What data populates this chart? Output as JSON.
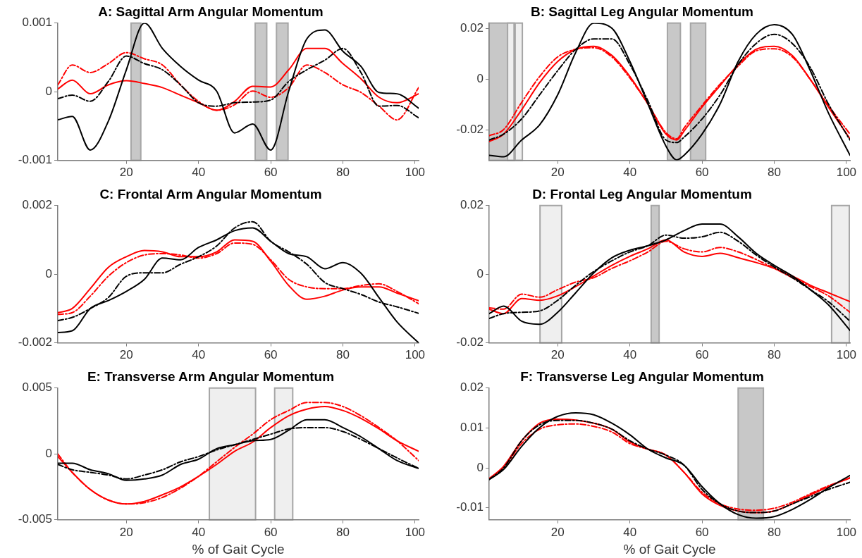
{
  "chart_data": [
    {
      "type": "line",
      "title": "A: Sagittal Arm Angular Momentum",
      "x": [
        1,
        5,
        10,
        15,
        20,
        25,
        30,
        35,
        40,
        45,
        50,
        55,
        60,
        65,
        70,
        75,
        80,
        85,
        90,
        95,
        101
      ],
      "xlim": [
        1,
        101
      ],
      "xticks": [
        20,
        40,
        60,
        80,
        100
      ],
      "ylim": [
        -0.001,
        0.001
      ],
      "yticks": [
        -0.001,
        0,
        0.001
      ],
      "bands": [
        {
          "axis": "x",
          "from": 21.3,
          "to": 24,
          "color": "#c8c8c8"
        },
        {
          "axis": "x",
          "from": 55.7,
          "to": 58.9,
          "color": "#c8c8c8"
        },
        {
          "axis": "x",
          "from": 61.6,
          "to": 64.8,
          "color": "#c8c8c8"
        }
      ],
      "series": [
        {
          "color": "#000000",
          "line_style": "solid",
          "values": [
            -0.00041,
            -0.00036,
            -0.00085,
            -0.00043,
            0.00032,
            0.001,
            0.00063,
            0.00037,
            0.00017,
            1e-05,
            -0.0006,
            -0.00047,
            -0.00085,
            1e-05,
            0.00077,
            0.0009,
            0.00059,
            0.00037,
            -1e-05,
            -3e-05,
            -0.00024
          ]
        },
        {
          "color": "#000000",
          "line_style": "dashed",
          "values": [
            -0.0001,
            -5e-05,
            -0.00014,
            0.00015,
            0.00052,
            0.00041,
            0.00032,
            0.0001,
            -0.00016,
            -0.00021,
            -0.00016,
            -0.00015,
            -0.00012,
            0.00015,
            0.00032,
            0.00046,
            0.00063,
            0.00028,
            -0.00021,
            -0.0002,
            -0.00038
          ]
        },
        {
          "color": "#ff0000",
          "line_style": "solid",
          "values": [
            4e-05,
            0.00017,
            -3e-05,
            0.0001,
            0.00016,
            0.00012,
            6e-05,
            -5e-05,
            -0.00016,
            -0.00027,
            -0.00014,
            8e-05,
            7e-05,
            0.00032,
            0.00063,
            0.00063,
            0.00041,
            0.00019,
            -8e-05,
            -0.00016,
            -3e-05
          ]
        },
        {
          "color": "#ff0000",
          "line_style": "dashed",
          "values": [
            0.0001,
            0.00039,
            0.00028,
            0.00041,
            0.00057,
            0.00048,
            0.00039,
            0.0001,
            -0.00014,
            -0.00027,
            -0.00019,
            1e-05,
            -8e-05,
            6e-05,
            0.00039,
            0.00028,
            0.0001,
            -1e-05,
            -0.00021,
            -0.00041,
            6e-05
          ]
        }
      ]
    },
    {
      "type": "line",
      "title": "B: Sagittal Leg Angular Momentum",
      "x": [
        1,
        5,
        10,
        15,
        20,
        25,
        30,
        35,
        40,
        45,
        50,
        53,
        55,
        60,
        65,
        70,
        75,
        80,
        85,
        90,
        95,
        101
      ],
      "xlim": [
        1,
        101
      ],
      "xticks": [
        20,
        40,
        60,
        80,
        100
      ],
      "ylim": [
        -0.032,
        0.022
      ],
      "yticks": [
        -0.02,
        0,
        0.02
      ],
      "bands": [
        {
          "axis": "x",
          "from": 1,
          "to": 7.9,
          "color": "#c8c8c8"
        },
        {
          "axis": "x",
          "from": 6.1,
          "to": 7.9,
          "color": "#efefef"
        },
        {
          "axis": "x",
          "from": 8.2,
          "to": 10.2,
          "color": "#efefef"
        },
        {
          "axis": "x",
          "from": 50.4,
          "to": 54,
          "color": "#c8c8c8"
        },
        {
          "axis": "x",
          "from": 56.8,
          "to": 61,
          "color": "#c8c8c8"
        }
      ],
      "series": [
        {
          "color": "#000000",
          "line_style": "solid",
          "values": [
            -0.03,
            -0.0306,
            -0.024,
            -0.018,
            -0.0062,
            0.0105,
            0.022,
            0.02,
            0.0069,
            -0.0098,
            -0.0264,
            -0.0318,
            -0.03,
            -0.0217,
            -0.0098,
            0.0069,
            0.0176,
            0.0214,
            0.0176,
            0.0033,
            -0.0133,
            -0.03
          ]
        },
        {
          "color": "#000000",
          "line_style": "dashed",
          "values": [
            -0.024,
            -0.0217,
            -0.0157,
            -0.0062,
            0.0033,
            0.0117,
            0.0158,
            0.0158,
            0.0057,
            -0.0086,
            -0.024,
            -0.025,
            -0.0229,
            -0.0157,
            -0.0062,
            0.0057,
            0.014,
            0.0176,
            0.014,
            0.0045,
            -0.0098,
            -0.024
          ]
        },
        {
          "color": "#ff0000",
          "line_style": "solid",
          "values": [
            -0.0246,
            -0.0217,
            -0.0121,
            -0.0014,
            0.0069,
            0.0117,
            0.0129,
            0.0093,
            0.001,
            -0.0098,
            -0.0217,
            -0.024,
            -0.0205,
            -0.011,
            -0.0026,
            0.0057,
            0.0117,
            0.0129,
            0.0093,
            -0.0002,
            -0.011,
            -0.0235
          ]
        },
        {
          "color": "#ff0000",
          "line_style": "dashed",
          "values": [
            -0.0223,
            -0.0199,
            -0.0092,
            0.001,
            0.0087,
            0.0117,
            0.0123,
            0.0087,
            0.0004,
            -0.0098,
            -0.0211,
            -0.0235,
            -0.0193,
            -0.0104,
            -0.002,
            0.0051,
            0.0111,
            0.0119,
            0.0087,
            -0.0002,
            -0.0104,
            -0.0217
          ]
        }
      ]
    },
    {
      "type": "line",
      "title": "C: Frontal Arm Angular Momentum",
      "x": [
        1,
        5,
        10,
        15,
        20,
        25,
        30,
        35,
        40,
        45,
        50,
        55,
        60,
        65,
        70,
        75,
        80,
        85,
        90,
        95,
        101
      ],
      "xlim": [
        1,
        101
      ],
      "xticks": [
        20,
        40,
        60,
        80,
        100
      ],
      "ylim": [
        -0.002,
        0.002
      ],
      "yticks": [
        -0.002,
        0,
        0.002
      ],
      "series": [
        {
          "color": "#000000",
          "line_style": "solid",
          "values": [
            -0.0017,
            -0.00165,
            -0.001,
            -0.00077,
            -0.0005,
            -0.00015,
            0.00047,
            0.00042,
            0.00078,
            0.001,
            0.00127,
            0.00135,
            0.00096,
            0.0006,
            0.00051,
            0.00016,
            0.00034,
            3e-05,
            -0.00068,
            -0.00139,
            -0.002
          ]
        },
        {
          "color": "#000000",
          "line_style": "dashed",
          "values": [
            -0.00135,
            -0.00126,
            -0.001,
            -0.00068,
            -6e-05,
            4e-05,
            4e-05,
            0.00029,
            0.00051,
            0.00082,
            0.00135,
            0.00153,
            0.00096,
            0.00065,
            0.00029,
            -0.00024,
            -0.00042,
            -0.00059,
            -0.00081,
            -0.00095,
            -0.00114
          ]
        },
        {
          "color": "#ff0000",
          "line_style": "solid",
          "values": [
            -0.00112,
            -0.001,
            -0.00042,
            0.0002,
            0.00051,
            0.00069,
            0.00065,
            0.00051,
            0.00051,
            0.00065,
            0.001,
            0.00096,
            0.00038,
            -0.00033,
            -0.00073,
            -0.00064,
            -0.00046,
            -0.00037,
            -0.00037,
            -0.00055,
            -0.00077
          ]
        },
        {
          "color": "#ff0000",
          "line_style": "dashed",
          "values": [
            -0.00117,
            -0.00112,
            -0.00064,
            -6e-05,
            0.00034,
            0.00056,
            0.0006,
            0.00056,
            0.00047,
            0.0006,
            0.00091,
            0.00087,
            0.00042,
            -0.00015,
            -0.00037,
            -0.00042,
            -0.00042,
            -0.00033,
            -0.00028,
            -0.0005,
            -0.00086
          ]
        }
      ]
    },
    {
      "type": "line",
      "title": "D: Frontal Leg Angular Momentum",
      "x": [
        1,
        5,
        10,
        15,
        20,
        25,
        30,
        35,
        40,
        45,
        50,
        55,
        60,
        65,
        70,
        75,
        80,
        85,
        90,
        95,
        101
      ],
      "xlim": [
        1,
        101
      ],
      "xticks": [
        20,
        40,
        60,
        80,
        100
      ],
      "ylim": [
        -0.02,
        0.02
      ],
      "yticks": [
        -0.02,
        0,
        0.02
      ],
      "bands": [
        {
          "axis": "x",
          "from": 15.1,
          "to": 21.1,
          "color": "#efefef"
        },
        {
          "axis": "x",
          "from": 45.9,
          "to": 48.1,
          "color": "#c8c8c8"
        },
        {
          "axis": "x",
          "from": 95.9,
          "to": 100.8,
          "color": "#efefef"
        }
      ],
      "series": [
        {
          "color": "#000000",
          "line_style": "solid",
          "values": [
            -0.0115,
            -0.0093,
            -0.0137,
            -0.0146,
            -0.0111,
            -0.0054,
            0.0004,
            0.0048,
            0.007,
            0.0083,
            0.01,
            0.0127,
            0.0146,
            0.0146,
            0.0109,
            0.0061,
            0.0026,
            -0.0005,
            -0.0045,
            -0.0089,
            -0.0164
          ]
        },
        {
          "color": "#000000",
          "line_style": "dashed",
          "values": [
            -0.0129,
            -0.0115,
            -0.0111,
            -0.0107,
            -0.0076,
            -0.0032,
            0.0008,
            0.0039,
            0.0065,
            0.0083,
            0.0114,
            0.0105,
            0.0109,
            0.0122,
            0.0096,
            0.0056,
            0.0021,
            -0.001,
            -0.0045,
            -0.008,
            -0.0137
          ]
        },
        {
          "color": "#ff0000",
          "line_style": "solid",
          "values": [
            -0.0102,
            -0.0115,
            -0.0071,
            -0.0076,
            -0.0063,
            -0.0036,
            -0.0005,
            0.0026,
            0.0052,
            0.0074,
            0.01,
            0.0065,
            0.0052,
            0.0061,
            0.0048,
            0.0034,
            0.0017,
            -0.0005,
            -0.0032,
            -0.0054,
            -0.008
          ]
        },
        {
          "color": "#ff0000",
          "line_style": "dashed",
          "values": [
            -0.0098,
            -0.0102,
            -0.0058,
            -0.0067,
            -0.0045,
            -0.0023,
            -0.001,
            0.0017,
            0.0039,
            0.0065,
            0.0096,
            0.0074,
            0.0065,
            0.0078,
            0.0065,
            0.0043,
            0.0017,
            -0.001,
            -0.0036,
            -0.0063,
            -0.0111
          ]
        }
      ]
    },
    {
      "type": "line",
      "title": "E: Transverse Arm Angular Momentum",
      "xlabel": "% of Gait Cycle",
      "x": [
        1,
        5,
        10,
        15,
        20,
        25,
        30,
        35,
        40,
        45,
        50,
        55,
        60,
        65,
        70,
        75,
        80,
        85,
        90,
        95,
        101
      ],
      "xlim": [
        1,
        101
      ],
      "xticks": [
        20,
        40,
        60,
        80,
        100
      ],
      "ylim": [
        -0.005,
        0.005
      ],
      "yticks": [
        -0.005,
        0,
        0.005
      ],
      "bands": [
        {
          "axis": "x",
          "from": 43,
          "to": 55.8,
          "color": "#efefef"
        },
        {
          "axis": "x",
          "from": 61.1,
          "to": 66.1,
          "color": "#efefef"
        }
      ],
      "series": [
        {
          "color": "#000000",
          "line_style": "solid",
          "values": [
            -0.0007,
            -0.0007,
            -0.0012,
            -0.0015,
            -0.002,
            -0.0019,
            -0.0016,
            -0.0008,
            -0.0004,
            0.0004,
            0.0007,
            0.001,
            0.0011,
            0.0018,
            0.0026,
            0.0026,
            0.002,
            0.0013,
            0.0004,
            -0.0005,
            -0.0011
          ]
        },
        {
          "color": "#000000",
          "line_style": "dashed",
          "values": [
            -0.0008,
            -0.0012,
            -0.0014,
            -0.0016,
            -0.0019,
            -0.0016,
            -0.0012,
            -0.0006,
            -0.0002,
            0.0003,
            0.0007,
            0.0011,
            0.0015,
            0.0019,
            0.002,
            0.002,
            0.0017,
            0.0011,
            0.0004,
            -0.0003,
            -0.0011
          ]
        },
        {
          "color": "#ff0000",
          "line_style": "solid",
          "values": [
            -0.0002,
            -0.0014,
            -0.0027,
            -0.0035,
            -0.0038,
            -0.0036,
            -0.0031,
            -0.0025,
            -0.0017,
            -0.0008,
            0.0002,
            0.0009,
            0.002,
            0.0029,
            0.0034,
            0.0036,
            0.0033,
            0.0027,
            0.0019,
            0.001,
            0.0002
          ]
        },
        {
          "color": "#ff0000",
          "line_style": "dashed",
          "values": [
            0,
            -0.0014,
            -0.0027,
            -0.0035,
            -0.0038,
            -0.0037,
            -0.0033,
            -0.0026,
            -0.0017,
            -0.0006,
            0.0005,
            0.0015,
            0.0026,
            0.0033,
            0.0039,
            0.0039,
            0.0036,
            0.0029,
            0.002,
            0.001,
            -0.0005
          ]
        }
      ]
    },
    {
      "type": "line",
      "title": "F: Transverse Leg Angular Momentum",
      "xlabel": "% of Gait Cycle",
      "x": [
        1,
        5,
        10,
        15,
        20,
        25,
        30,
        35,
        40,
        45,
        50,
        55,
        60,
        65,
        70,
        75,
        80,
        85,
        90,
        95,
        101
      ],
      "xlim": [
        1,
        101
      ],
      "xticks": [
        20,
        40,
        60,
        80,
        100
      ],
      "ylim": [
        -0.013,
        0.02
      ],
      "yticks": [
        -0.01,
        0,
        0.01,
        0.02
      ],
      "bands": [
        {
          "axis": "x",
          "from": 70,
          "to": 77,
          "color": "#c8c8c8"
        }
      ],
      "series": [
        {
          "color": "#000000",
          "line_style": "solid",
          "values": [
            -0.0029,
            -0.0004,
            0.0054,
            0.0101,
            0.0129,
            0.0138,
            0.0133,
            0.0112,
            0.0083,
            0.0047,
            0.0025,
            0.0007,
            -0.0047,
            -0.009,
            -0.0117,
            -0.0126,
            -0.0122,
            -0.0104,
            -0.0079,
            -0.005,
            -0.0019
          ]
        },
        {
          "color": "#000000",
          "line_style": "dashed",
          "values": [
            -0.0029,
            0,
            0.0068,
            0.0108,
            0.0119,
            0.0119,
            0.0112,
            0.0097,
            0.0068,
            0.0047,
            0.0032,
            0.0007,
            -0.0054,
            -0.009,
            -0.0108,
            -0.0112,
            -0.0108,
            -0.009,
            -0.0072,
            -0.0054,
            -0.0036
          ]
        },
        {
          "color": "#ff0000",
          "line_style": "solid",
          "values": [
            -0.0027,
            0.0004,
            0.0068,
            0.0112,
            0.0122,
            0.012,
            0.0112,
            0.0097,
            0.0065,
            0.0047,
            0.0032,
            -0.0011,
            -0.0065,
            -0.0094,
            -0.0108,
            -0.0112,
            -0.0108,
            -0.009,
            -0.0068,
            -0.0047,
            -0.0025
          ]
        },
        {
          "color": "#ff0000",
          "line_style": "dashed",
          "values": [
            -0.0027,
            0,
            0.0061,
            0.0097,
            0.0108,
            0.011,
            0.0104,
            0.009,
            0.0061,
            0.0047,
            0.0032,
            -0.0011,
            -0.0061,
            -0.009,
            -0.0103,
            -0.0106,
            -0.0101,
            -0.0086,
            -0.0065,
            -0.0045,
            -0.0025
          ]
        }
      ]
    }
  ]
}
